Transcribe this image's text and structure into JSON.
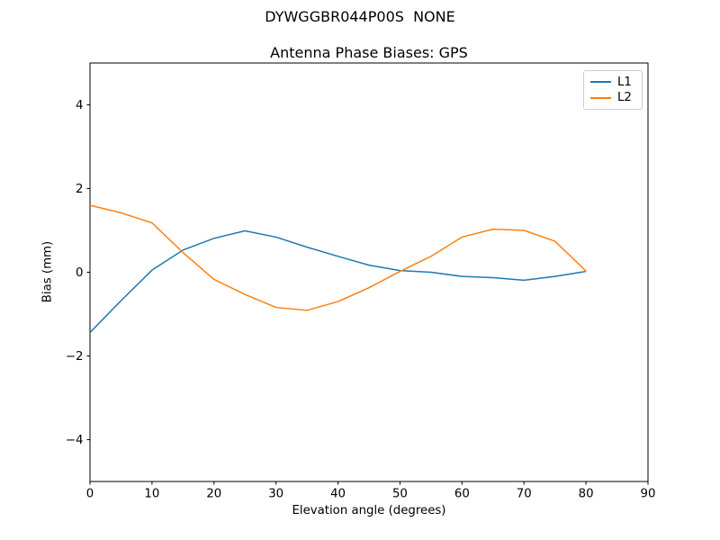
{
  "figure": {
    "title": "DYWGGBR044P00S  NONE"
  },
  "chart_data": {
    "type": "line",
    "title": "Antenna Phase Biases: GPS",
    "xlabel": "Elevation angle (degrees)",
    "ylabel": "Bias (mm)",
    "xlim": [
      0,
      90
    ],
    "ylim": [
      -5,
      5
    ],
    "grid": false,
    "legend_position": "upper right",
    "xticks": {
      "values": [
        0,
        10,
        20,
        30,
        40,
        50,
        60,
        70,
        80,
        90
      ],
      "labels": [
        "0",
        "10",
        "20",
        "30",
        "40",
        "50",
        "60",
        "70",
        "80",
        "90"
      ]
    },
    "yticks": {
      "values": [
        -4,
        -2,
        0,
        2,
        4
      ],
      "labels": [
        "−4",
        "−2",
        "0",
        "2",
        "4"
      ]
    },
    "x": [
      0,
      5,
      10,
      15,
      20,
      25,
      30,
      35,
      40,
      45,
      50,
      55,
      60,
      65,
      70,
      75,
      80
    ],
    "series": [
      {
        "name": "L1",
        "color": "#1f77b4",
        "values": [
          -1.44,
          -0.68,
          0.05,
          0.53,
          0.81,
          0.99,
          0.84,
          0.6,
          0.38,
          0.17,
          0.04,
          0.0,
          -0.1,
          -0.13,
          -0.19,
          -0.1,
          0.02
        ]
      },
      {
        "name": "L2",
        "color": "#ff7f0e",
        "values": [
          1.6,
          1.42,
          1.18,
          0.47,
          -0.17,
          -0.53,
          -0.84,
          -0.91,
          -0.7,
          -0.37,
          0.02,
          0.38,
          0.84,
          1.03,
          1.0,
          0.74,
          0.03
        ]
      }
    ]
  }
}
